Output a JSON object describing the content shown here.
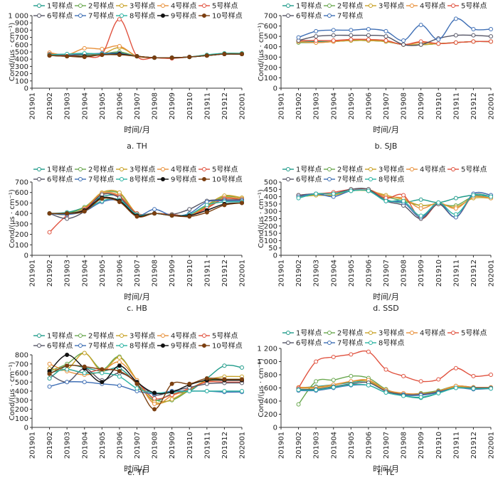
{
  "colors": [
    "#1f9b8a",
    "#6aa84f",
    "#c9a227",
    "#e8903a",
    "#e0523f",
    "#555566",
    "#3f6fb5",
    "#2bb3a3",
    "#111111",
    "#7b3f10"
  ],
  "chart_data": [
    {
      "type": "line",
      "caption": "a.  TH",
      "xlabel": "时间/月",
      "ylabel": "Cond/(μs · cm⁻¹)",
      "ylim": [
        0,
        1000
      ],
      "yticks": [
        0,
        100,
        200,
        300,
        400,
        500,
        600,
        700,
        800,
        900,
        1000
      ],
      "x": [
        "201901",
        "201902",
        "201903",
        "201904",
        "201905",
        "201906",
        "201907",
        "201908",
        "201909",
        "201910",
        "201911",
        "201912",
        "202001"
      ],
      "series": [
        {
          "name": "1号样点",
          "values": [
            null,
            460,
            455,
            460,
            470,
            490,
            440,
            420,
            420,
            430,
            455,
            475,
            475
          ]
        },
        {
          "name": "2号样点",
          "values": [
            null,
            470,
            450,
            460,
            470,
            500,
            440,
            420,
            420,
            430,
            455,
            470,
            470
          ]
        },
        {
          "name": "3号样点",
          "values": [
            null,
            480,
            450,
            470,
            470,
            560,
            440,
            420,
            420,
            430,
            450,
            470,
            470
          ]
        },
        {
          "name": "4号样点",
          "values": [
            null,
            490,
            460,
            550,
            540,
            580,
            440,
            420,
            420,
            430,
            450,
            480,
            480
          ]
        },
        {
          "name": "5号样点",
          "values": [
            null,
            470,
            450,
            440,
            470,
            950,
            440,
            420,
            410,
            430,
            450,
            470,
            470
          ]
        },
        {
          "name": "6号样点",
          "values": [
            null,
            460,
            450,
            470,
            470,
            480,
            440,
            420,
            420,
            430,
            450,
            470,
            470
          ]
        },
        {
          "name": "7号样点",
          "values": [
            null,
            460,
            470,
            470,
            480,
            480,
            440,
            420,
            420,
            430,
            450,
            470,
            470
          ]
        },
        {
          "name": "8号样点",
          "values": [
            null,
            460,
            470,
            480,
            470,
            470,
            440,
            420,
            420,
            430,
            460,
            480,
            480
          ]
        },
        {
          "name": "9号样点",
          "values": [
            null,
            450,
            440,
            440,
            460,
            470,
            440,
            420,
            420,
            430,
            450,
            470,
            470
          ]
        },
        {
          "name": "10号样点",
          "values": [
            null,
            450,
            440,
            430,
            460,
            460,
            440,
            420,
            420,
            430,
            450,
            470,
            470
          ]
        }
      ]
    },
    {
      "type": "line",
      "caption": "b.  SJB",
      "xlabel": "时间/月",
      "ylabel": "Cond/(μs · cm⁻¹)",
      "ylim": [
        0,
        700
      ],
      "yticks": [
        0,
        100,
        200,
        300,
        400,
        500,
        600,
        700
      ],
      "x": [
        "201901",
        "201902",
        "201903",
        "201904",
        "201905",
        "201906",
        "201907",
        "201908",
        "201909",
        "201910",
        "201911",
        "201912",
        "202001"
      ],
      "series": [
        {
          "name": "1号样点",
          "values": [
            null,
            450,
            450,
            450,
            460,
            460,
            450,
            420,
            420,
            430,
            440,
            450,
            450
          ]
        },
        {
          "name": "2号样点",
          "values": [
            null,
            440,
            440,
            450,
            460,
            460,
            450,
            420,
            420,
            430,
            440,
            450,
            450
          ]
        },
        {
          "name": "3号样点",
          "values": [
            null,
            450,
            440,
            450,
            460,
            460,
            450,
            420,
            420,
            430,
            440,
            450,
            450
          ]
        },
        {
          "name": "4号样点",
          "values": [
            null,
            450,
            440,
            450,
            470,
            470,
            460,
            420,
            440,
            430,
            440,
            450,
            450
          ]
        },
        {
          "name": "5号样点",
          "values": [
            null,
            460,
            460,
            460,
            470,
            470,
            460,
            420,
            450,
            430,
            440,
            450,
            450
          ]
        },
        {
          "name": "6号样点",
          "values": [
            null,
            460,
            500,
            510,
            510,
            510,
            500,
            420,
            420,
            480,
            510,
            510,
            500
          ]
        },
        {
          "name": "7号样点",
          "values": [
            null,
            490,
            550,
            560,
            560,
            570,
            550,
            460,
            610,
            470,
            670,
            570,
            570
          ]
        }
      ]
    },
    {
      "type": "line",
      "caption": "c.  HB",
      "xlabel": "时间/月",
      "ylabel": "Cond/(μs · cm⁻¹)",
      "ylim": [
        0,
        700
      ],
      "yticks": [
        0,
        100,
        200,
        300,
        400,
        500,
        600,
        700
      ],
      "x": [
        "201901",
        "201902",
        "201903",
        "201904",
        "201905",
        "201906",
        "201907",
        "201908",
        "201909",
        "201910",
        "201911",
        "201912",
        "202001"
      ],
      "series": [
        {
          "name": "1号样点",
          "values": [
            null,
            400,
            410,
            460,
            560,
            560,
            400,
            400,
            390,
            380,
            460,
            540,
            540
          ]
        },
        {
          "name": "2号样点",
          "values": [
            null,
            400,
            400,
            460,
            590,
            590,
            400,
            400,
            390,
            380,
            470,
            560,
            550
          ]
        },
        {
          "name": "3号样点",
          "values": [
            null,
            400,
            390,
            450,
            600,
            600,
            400,
            400,
            390,
            380,
            480,
            570,
            550
          ]
        },
        {
          "name": "4号样点",
          "values": [
            null,
            400,
            390,
            440,
            590,
            570,
            400,
            400,
            390,
            380,
            460,
            550,
            540
          ]
        },
        {
          "name": "5号样点",
          "values": [
            null,
            220,
            380,
            440,
            580,
            560,
            400,
            400,
            390,
            380,
            450,
            540,
            530
          ]
        },
        {
          "name": "6号样点",
          "values": [
            null,
            400,
            350,
            420,
            580,
            550,
            390,
            400,
            390,
            440,
            520,
            530,
            530
          ]
        },
        {
          "name": "7号样点",
          "values": [
            null,
            400,
            390,
            420,
            510,
            520,
            380,
            440,
            380,
            400,
            510,
            520,
            520
          ]
        },
        {
          "name": "8号样点",
          "values": [
            null,
            400,
            400,
            430,
            520,
            530,
            390,
            400,
            380,
            390,
            480,
            510,
            510
          ]
        },
        {
          "name": "9号样点",
          "values": [
            null,
            400,
            400,
            430,
            550,
            520,
            380,
            400,
            380,
            380,
            430,
            490,
            500
          ]
        },
        {
          "name": "10号样点",
          "values": [
            null,
            400,
            400,
            420,
            540,
            510,
            370,
            400,
            380,
            370,
            410,
            480,
            500
          ]
        }
      ]
    },
    {
      "type": "line",
      "caption": "d.  SSD",
      "xlabel": "时间/月",
      "ylabel": "Cond/(μs · cm⁻¹)",
      "ylim": [
        0,
        500
      ],
      "yticks": [
        0,
        50,
        100,
        150,
        200,
        250,
        300,
        350,
        400,
        450,
        500
      ],
      "x": [
        "201901",
        "201902",
        "201903",
        "201904",
        "201905",
        "201906",
        "201907",
        "201908",
        "201909",
        "201910",
        "201911",
        "201912",
        "202001"
      ],
      "series": [
        {
          "name": "1号样点",
          "values": [
            null,
            400,
            420,
            420,
            450,
            450,
            380,
            360,
            380,
            360,
            390,
            410,
            400
          ]
        },
        {
          "name": "2号样点",
          "values": [
            null,
            400,
            410,
            410,
            440,
            440,
            400,
            370,
            340,
            350,
            340,
            400,
            390
          ]
        },
        {
          "name": "3号样点",
          "values": [
            null,
            400,
            410,
            410,
            440,
            440,
            410,
            380,
            340,
            350,
            330,
            390,
            390
          ]
        },
        {
          "name": "4号样点",
          "values": [
            null,
            410,
            420,
            420,
            450,
            450,
            400,
            390,
            320,
            360,
            320,
            400,
            390
          ]
        },
        {
          "name": "5号样点",
          "values": [
            null,
            410,
            420,
            430,
            450,
            450,
            390,
            410,
            250,
            350,
            260,
            410,
            400
          ]
        },
        {
          "name": "6号样点",
          "values": [
            null,
            410,
            420,
            420,
            450,
            450,
            370,
            340,
            250,
            350,
            260,
            420,
            410
          ]
        },
        {
          "name": "7号样点",
          "values": [
            null,
            400,
            420,
            400,
            440,
            440,
            370,
            360,
            260,
            360,
            260,
            420,
            410
          ]
        },
        {
          "name": "8号样点",
          "values": [
            null,
            390,
            420,
            420,
            440,
            440,
            370,
            370,
            270,
            360,
            280,
            410,
            400
          ]
        }
      ]
    },
    {
      "type": "line",
      "caption": "e.  TF",
      "xlabel": "时间/月",
      "ylabel": "Cond/(μs · cm⁻¹)",
      "ylim": [
        0,
        800
      ],
      "yticks": [
        0,
        100,
        200,
        300,
        400,
        500,
        600,
        700,
        800
      ],
      "x": [
        "201901",
        "201902",
        "201903",
        "201904",
        "201905",
        "201906",
        "201907",
        "201908",
        "201909",
        "201910",
        "201911",
        "201912",
        "202001"
      ],
      "series": [
        {
          "name": "1号样点",
          "values": [
            null,
            540,
            680,
            660,
            620,
            650,
            480,
            300,
            370,
            400,
            540,
            680,
            660
          ]
        },
        {
          "name": "2号样点",
          "values": [
            null,
            620,
            700,
            820,
            640,
            780,
            520,
            310,
            300,
            410,
            520,
            530,
            530
          ]
        },
        {
          "name": "3号样点",
          "values": [
            null,
            650,
            640,
            820,
            620,
            770,
            520,
            280,
            310,
            420,
            520,
            560,
            560
          ]
        },
        {
          "name": "4号样点",
          "values": [
            null,
            700,
            620,
            580,
            620,
            720,
            520,
            260,
            350,
            420,
            510,
            520,
            520
          ]
        },
        {
          "name": "5号样点",
          "values": [
            null,
            600,
            640,
            600,
            640,
            620,
            500,
            320,
            360,
            430,
            500,
            500,
            500
          ]
        },
        {
          "name": "6号样点",
          "values": [
            null,
            590,
            500,
            650,
            520,
            600,
            500,
            360,
            400,
            440,
            480,
            490,
            490
          ]
        },
        {
          "name": "7号样点",
          "values": [
            null,
            450,
            500,
            500,
            480,
            460,
            400,
            370,
            400,
            400,
            400,
            390,
            390
          ]
        },
        {
          "name": "8号样点",
          "values": [
            null,
            600,
            640,
            600,
            600,
            560,
            430,
            380,
            390,
            400,
            400,
            400,
            400
          ]
        },
        {
          "name": "9号样点",
          "values": [
            null,
            620,
            800,
            650,
            500,
            680,
            500,
            380,
            390,
            470,
            520,
            520,
            520
          ]
        },
        {
          "name": "10号样点",
          "values": [
            null,
            590,
            680,
            670,
            640,
            620,
            480,
            200,
            480,
            480,
            540,
            530,
            530
          ]
        }
      ]
    },
    {
      "type": "line",
      "caption": "f.  TL",
      "xlabel": "时间/月",
      "ylabel": "Cond/(μs · cm⁻¹)",
      "ylim": [
        0,
        1200
      ],
      "yticks": [
        0,
        200,
        400,
        600,
        800,
        1000,
        1200
      ],
      "x": [
        "201901",
        "201902",
        "201903",
        "201904",
        "201905",
        "201906",
        "201907",
        "201908",
        "201909",
        "201910",
        "201911",
        "201912",
        "202001"
      ],
      "series": [
        {
          "name": "1号样点",
          "values": [
            null,
            600,
            620,
            650,
            680,
            700,
            560,
            480,
            450,
            520,
            620,
            590,
            600
          ]
        },
        {
          "name": "2号样点",
          "values": [
            null,
            350,
            700,
            720,
            780,
            750,
            580,
            500,
            520,
            560,
            630,
            610,
            600
          ]
        },
        {
          "name": "3号样点",
          "values": [
            null,
            600,
            600,
            640,
            700,
            700,
            560,
            500,
            500,
            540,
            620,
            600,
            600
          ]
        },
        {
          "name": "4号样点",
          "values": [
            null,
            610,
            610,
            650,
            700,
            720,
            570,
            520,
            510,
            550,
            630,
            610,
            610
          ]
        },
        {
          "name": "5号样点",
          "values": [
            null,
            600,
            1000,
            1070,
            1110,
            1150,
            880,
            780,
            700,
            730,
            900,
            780,
            800
          ]
        },
        {
          "name": "6号样点",
          "values": [
            null,
            580,
            580,
            620,
            660,
            680,
            550,
            500,
            500,
            540,
            600,
            600,
            600
          ]
        },
        {
          "name": "7号样点",
          "values": [
            null,
            560,
            560,
            600,
            640,
            640,
            530,
            490,
            490,
            530,
            600,
            580,
            590
          ]
        },
        {
          "name": "8号样点",
          "values": [
            null,
            570,
            570,
            610,
            650,
            640,
            530,
            480,
            460,
            520,
            600,
            590,
            590
          ]
        }
      ]
    }
  ]
}
